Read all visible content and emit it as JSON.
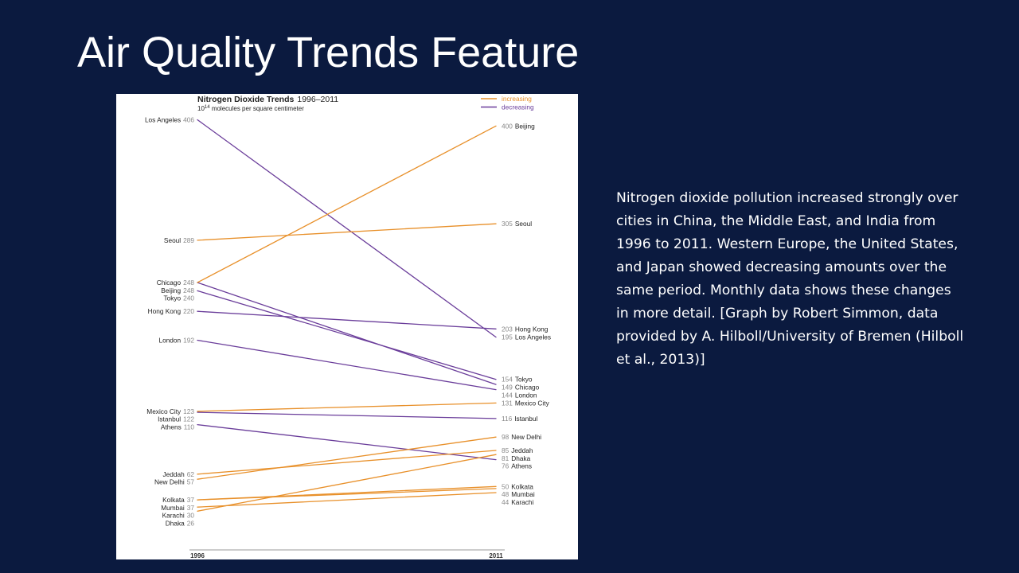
{
  "slide": {
    "title": "Air Quality Trends Feature",
    "caption": "Nitrogen dioxide pollution increased strongly over cities in China, the Middle East, and India from 1996 to 2011. Western Europe, the United States, and Japan showed decreasing amounts over the same period. Monthly data shows these changes in more detail. [Graph by Robert Simmon, data provided by A. Hilboll/University of Bremen (Hilboll et al., 2013)]",
    "background_color": "#0b1a3f"
  },
  "chart_data": {
    "type": "line",
    "title": "Nitrogen Dioxide Trends",
    "title_years": "1996–2011",
    "units_base": "10",
    "units_exp": "14",
    "units_rest": " molecules per square centimeter",
    "x": [
      "1996",
      "2011"
    ],
    "legend": {
      "position": "top-right",
      "items": [
        {
          "label": "increasing",
          "color": "#e8902a"
        },
        {
          "label": "decreasing",
          "color": "#6a3d9a"
        }
      ]
    },
    "colors": {
      "increasing": "#e8902a",
      "decreasing": "#6a3d9a",
      "label_text": "#222222",
      "value_text": "#888888"
    },
    "series": [
      {
        "name": "Los Angeles",
        "values": [
          406,
          195
        ],
        "trend": "decreasing"
      },
      {
        "name": "Seoul",
        "values": [
          289,
          305
        ],
        "trend": "increasing"
      },
      {
        "name": "Chicago",
        "values": [
          248,
          149
        ],
        "trend": "decreasing"
      },
      {
        "name": "Beijing",
        "values": [
          248,
          400
        ],
        "trend": "increasing"
      },
      {
        "name": "Tokyo",
        "values": [
          240,
          154
        ],
        "trend": "decreasing"
      },
      {
        "name": "Hong Kong",
        "values": [
          220,
          203
        ],
        "trend": "decreasing"
      },
      {
        "name": "London",
        "values": [
          192,
          144
        ],
        "trend": "decreasing"
      },
      {
        "name": "Mexico City",
        "values": [
          123,
          131
        ],
        "trend": "increasing"
      },
      {
        "name": "Istanbul",
        "values": [
          122,
          116
        ],
        "trend": "decreasing"
      },
      {
        "name": "Athens",
        "values": [
          110,
          76
        ],
        "trend": "decreasing"
      },
      {
        "name": "Jeddah",
        "values": [
          62,
          85
        ],
        "trend": "increasing"
      },
      {
        "name": "New Delhi",
        "values": [
          57,
          98
        ],
        "trend": "increasing"
      },
      {
        "name": "Kolkata",
        "values": [
          37,
          50
        ],
        "trend": "increasing"
      },
      {
        "name": "Mumbai",
        "values": [
          37,
          48
        ],
        "trend": "increasing"
      },
      {
        "name": "Karachi",
        "values": [
          30,
          44
        ],
        "trend": "increasing"
      },
      {
        "name": "Dhaka",
        "values": [
          26,
          81
        ],
        "trend": "increasing"
      }
    ],
    "ylim": [
      0,
      420
    ]
  }
}
